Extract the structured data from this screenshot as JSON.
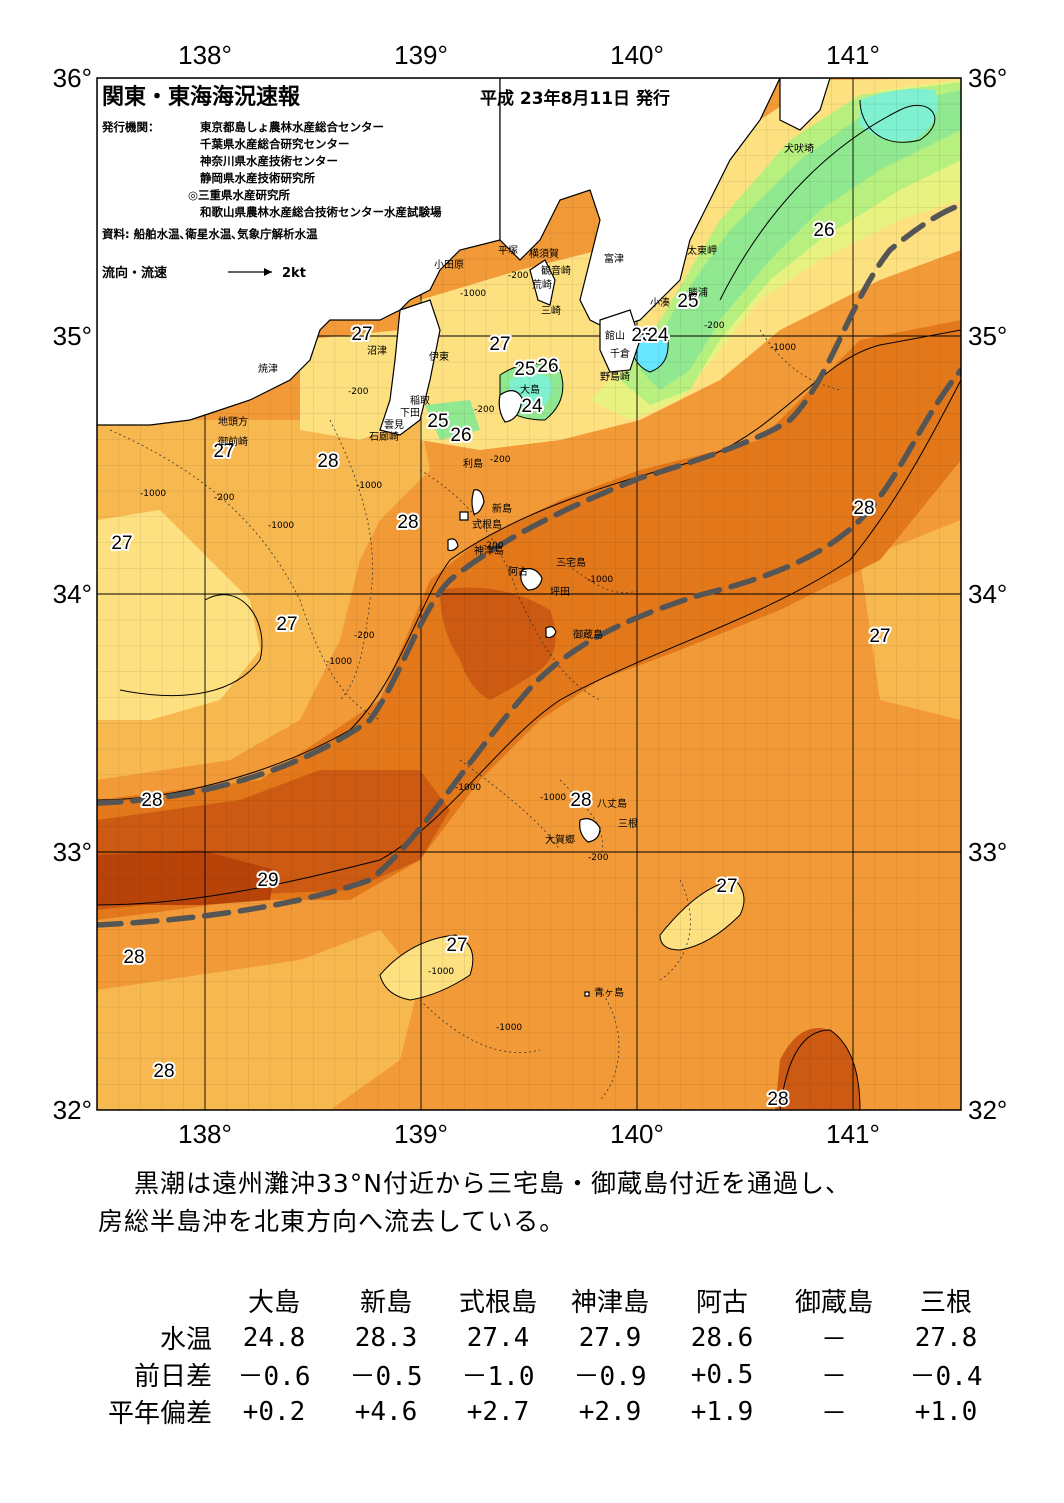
{
  "map": {
    "title": "関東・東海海況速報",
    "issued": "平成 23年8月11日 発行",
    "issuer_label": "発行機関：",
    "issuers": [
      "東京都島しょ農林水産総合センター",
      "千葉県水産総合研究センター",
      "神奈川県水産技術センター",
      "静岡県水産技術研究所",
      "◎三重県水産研究所",
      "和歌山県農林水産総合技術センター水産試験場"
    ],
    "source": "資料: 船舶水温､衛星水温､気象庁解析水温",
    "legend_label": "流向・流速",
    "legend_scale": "2kt",
    "lon_labels": [
      "138°",
      "139°",
      "140°",
      "141°"
    ],
    "lat_labels": [
      "36°",
      "35°",
      "34°",
      "33°",
      "32°"
    ],
    "isotherm_labels": [
      "27",
      "28",
      "27",
      "27",
      "28",
      "27",
      "24",
      "25",
      "26",
      "23",
      "24",
      "25",
      "26",
      "25",
      "26",
      "27",
      "28",
      "29",
      "28",
      "28",
      "28",
      "27",
      "27",
      "28",
      "27",
      "28"
    ],
    "place_names": [
      "犬吠埼",
      "太東岬",
      "勝浦",
      "小湊",
      "館山",
      "千倉",
      "野島崎",
      "富津",
      "横須賀",
      "観音崎",
      "平塚",
      "荒崎",
      "三崎",
      "小田原",
      "伊東",
      "沼津",
      "焼津",
      "稲取",
      "下田",
      "雲見",
      "石廊崎",
      "地頭方",
      "御前崎",
      "大島",
      "利島",
      "新島",
      "式根島",
      "神津島",
      "三宅島",
      "阿古",
      "坪田",
      "御蔵島",
      "八丈島",
      "三根",
      "大賀郷",
      "青ヶ島"
    ],
    "depth_labels": [
      "-200",
      "-1000",
      "-200",
      "-1000",
      "-1000",
      "-200",
      "-200",
      "-1000",
      "-200",
      "-1000",
      "-200",
      "-200",
      "-1000",
      "-1000",
      "-200",
      "-200",
      "-1000",
      "-1000",
      "-1000",
      "-1000"
    ],
    "colors": {
      "land": "#ffffff",
      "t23": "#66e6ff",
      "t24": "#7ff0d0",
      "t25": "#90e890",
      "t26": "#b8f080",
      "t26_5": "#e8f280",
      "t27": "#fde080",
      "t27_5": "#f8b850",
      "t28": "#f29a38",
      "t28_5": "#e2781a",
      "t29": "#cc5a12",
      "t29_5": "#b84308",
      "kuroshio": "#555555"
    }
  },
  "summary": {
    "line1": "黒潮は遠州灘沖33°N付近から三宅島・御蔵島付近を通過し、",
    "line2": "房総半島沖を北東方向へ流去している。"
  },
  "table": {
    "stations": [
      "大島",
      "新島",
      "式根島",
      "神津島",
      "阿古",
      "御蔵島",
      "三根"
    ],
    "rows": [
      {
        "label": "水温",
        "values": [
          "24.8",
          "28.3",
          "27.4",
          "27.9",
          "28.6",
          "－",
          "27.8"
        ]
      },
      {
        "label": "前日差",
        "values": [
          "－0.6",
          "－0.5",
          "－1.0",
          "－0.9",
          "+0.5",
          "－",
          "－0.4"
        ]
      },
      {
        "label": "平年偏差",
        "values": [
          "+0.2",
          "+4.6",
          "+2.7",
          "+2.9",
          "+1.9",
          "－",
          "+1.0"
        ]
      }
    ]
  }
}
